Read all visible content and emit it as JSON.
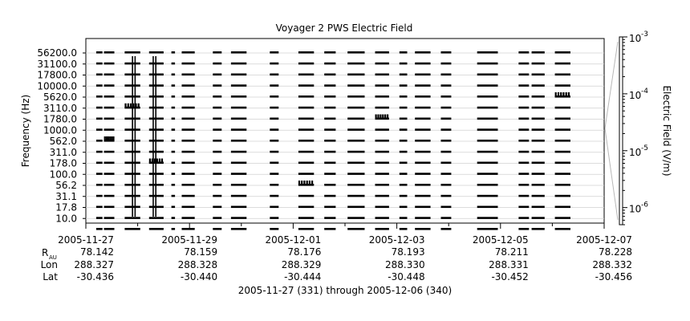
{
  "chart_data": {
    "type": "heatmap",
    "title": "Voyager 2 PWS Electric Field",
    "ylabel": "Frequency (Hz)",
    "colorbar_label": "Electric Field (V/m)",
    "xlabel": "2005-11-27 (331) through 2005-12-06 (340)",
    "x_range": [
      "2005-11-27",
      "2005-12-07"
    ],
    "x_ticks": [
      "2005-11-27",
      "2005-11-29",
      "2005-12-01",
      "2005-12-03",
      "2005-12-05",
      "2005-12-07"
    ],
    "frequency_channels": [
      "56200.0",
      "31100.0",
      "17800.0",
      "10000.0",
      "5620.0",
      "3110.0",
      "1780.0",
      "1000.0",
      "562.0",
      "311.0",
      "178.0",
      "100.0",
      "56.2",
      "31.1",
      "17.8",
      "10.0"
    ],
    "colorbar": {
      "scale": "log",
      "range": [
        5e-07,
        0.001
      ],
      "ticks": [
        {
          "value": 0.001,
          "mantissa": "10",
          "exp": "-3"
        },
        {
          "value": 0.0001,
          "mantissa": "10",
          "exp": "-4"
        },
        {
          "value": 1e-05,
          "mantissa": "10",
          "exp": "-5"
        },
        {
          "value": 1e-06,
          "mantissa": "10",
          "exp": "-6"
        }
      ]
    },
    "data_segments_days": [
      [
        0.2,
        0.32
      ],
      [
        0.35,
        0.55
      ],
      [
        0.75,
        1.05
      ],
      [
        1.22,
        1.5
      ],
      [
        1.65,
        1.72
      ],
      [
        1.85,
        2.1
      ],
      [
        2.45,
        2.62
      ],
      [
        2.8,
        3.1
      ],
      [
        3.55,
        3.72
      ],
      [
        4.1,
        4.4
      ],
      [
        4.6,
        4.82
      ],
      [
        5.05,
        5.38
      ],
      [
        5.58,
        5.85
      ],
      [
        6.05,
        6.2
      ],
      [
        6.35,
        6.65
      ],
      [
        6.85,
        7.05
      ],
      [
        7.55,
        7.95
      ],
      [
        8.35,
        8.55
      ],
      [
        8.6,
        8.85
      ],
      [
        9.05,
        9.35
      ]
    ],
    "ephemeris": {
      "labels": {
        "r": "R",
        "r_sub": "AU",
        "lon": "Lon",
        "lat": "Lat"
      },
      "columns": [
        {
          "r": "78.142",
          "lon": "288.327",
          "lat": "-30.436"
        },
        {
          "r": "78.159",
          "lon": "288.328",
          "lat": "-30.440"
        },
        {
          "r": "78.176",
          "lon": "288.329",
          "lat": "-30.444"
        },
        {
          "r": "78.193",
          "lon": "288.330",
          "lat": "-30.448"
        },
        {
          "r": "78.211",
          "lon": "288.331",
          "lat": "-30.452"
        },
        {
          "r": "78.228",
          "lon": "288.332",
          "lat": "-30.456"
        }
      ]
    }
  }
}
